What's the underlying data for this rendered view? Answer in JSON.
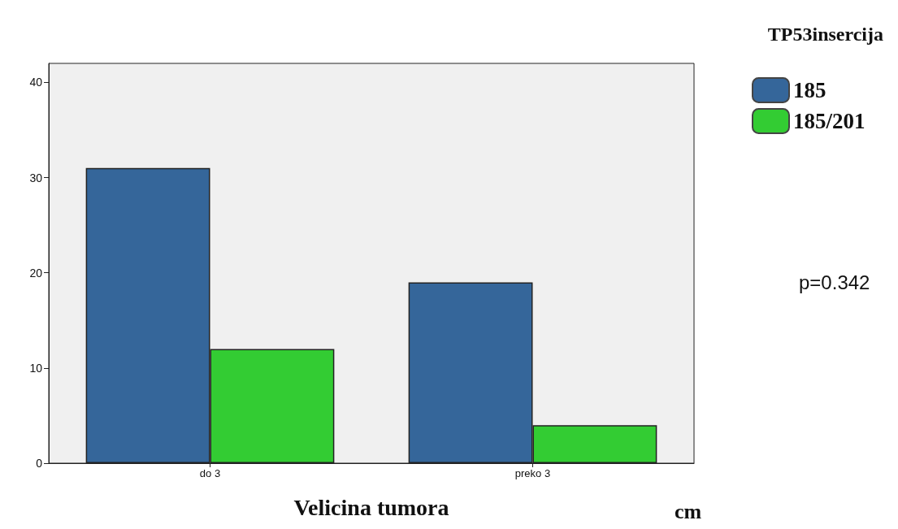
{
  "chart_data": {
    "type": "bar",
    "xlabel": "Velicina tumora",
    "legend_title": "TP53insercija",
    "categories": [
      "do 3",
      "preko 3"
    ],
    "series": [
      {
        "name": "185",
        "color": "#35669a",
        "values": [
          31,
          19
        ]
      },
      {
        "name": "185/201",
        "color": "#33cc33",
        "values": [
          12,
          4
        ]
      }
    ],
    "ylim": [
      0,
      42
    ],
    "yticks": [
      0,
      10,
      20,
      30,
      40
    ],
    "grid": false,
    "legend": "top right",
    "annotations": [
      "cm",
      "p=0.342"
    ]
  }
}
